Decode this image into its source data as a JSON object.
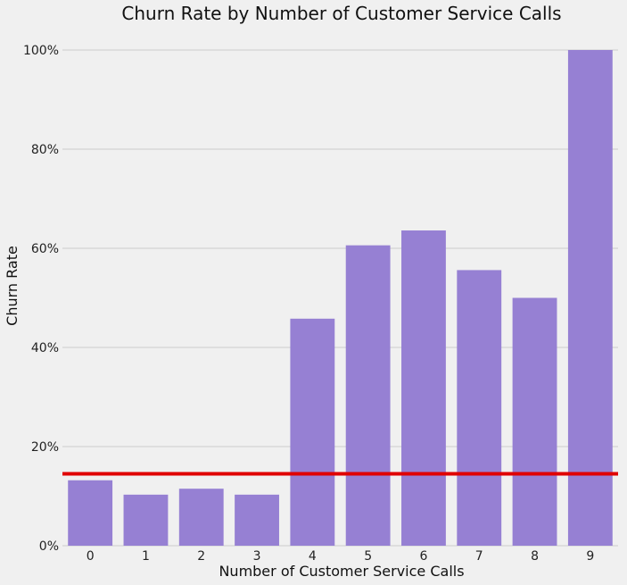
{
  "chart_data": {
    "type": "bar",
    "title": "Churn Rate by Number of Customer Service Calls",
    "xlabel": "Number of Customer Service Calls",
    "ylabel": "Churn Rate",
    "categories": [
      "0",
      "1",
      "2",
      "3",
      "4",
      "5",
      "6",
      "7",
      "8",
      "9"
    ],
    "values": [
      0.132,
      0.103,
      0.115,
      0.103,
      0.458,
      0.606,
      0.636,
      0.556,
      0.5,
      1.0
    ],
    "ylim": [
      0,
      1.0
    ],
    "yticks": [
      0,
      0.2,
      0.4,
      0.6,
      0.8,
      1.0
    ],
    "ytick_labels": [
      "0%",
      "20%",
      "40%",
      "60%",
      "80%",
      "100%"
    ],
    "reference_line": {
      "value": 0.145,
      "color": "#e00000"
    },
    "bar_color": "#9680d3",
    "grid": "y",
    "background": "#f0f0f0"
  }
}
